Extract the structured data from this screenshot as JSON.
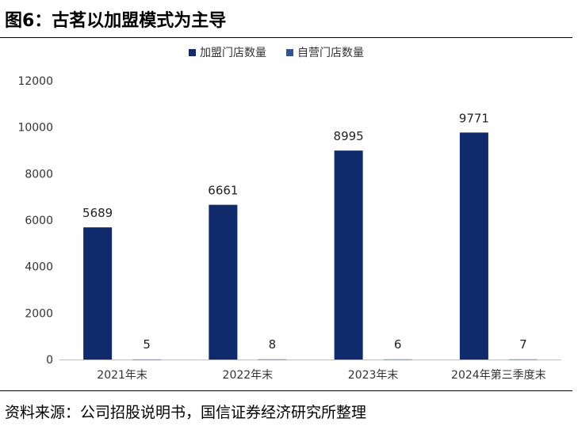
{
  "figure": {
    "title": "图6：古茗以加盟模式为主导",
    "source": "资料来源：公司招股说明书，国信证券经济研究所整理"
  },
  "chart_data": {
    "type": "bar",
    "categories": [
      "2021年末",
      "2022年末",
      "2023年末",
      "2024年第三季度末"
    ],
    "series": [
      {
        "name": "加盟门店数量",
        "values": [
          5689,
          6661,
          8995,
          9771
        ],
        "color": "#0f2b6b"
      },
      {
        "name": "自营门店数量",
        "values": [
          5,
          8,
          6,
          7
        ],
        "color": "#2f5597"
      }
    ],
    "yticks": [
      0,
      2000,
      4000,
      6000,
      8000,
      10000,
      12000
    ],
    "ylim": [
      0,
      12000
    ],
    "legend_position": "top-center",
    "grid": false
  }
}
